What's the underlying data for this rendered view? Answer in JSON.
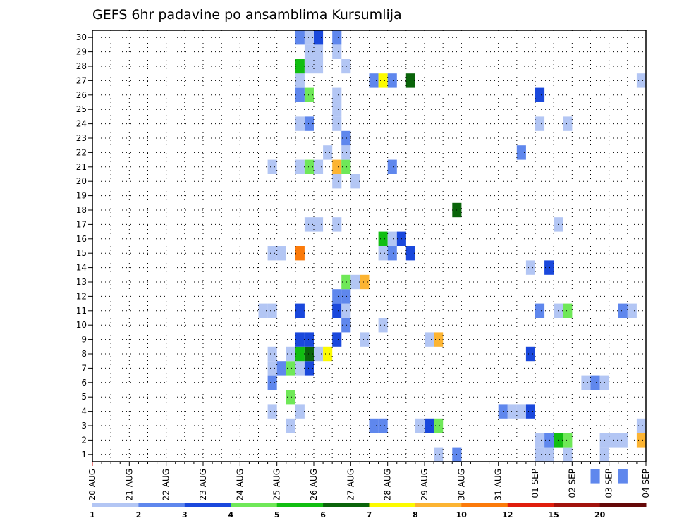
{
  "chart_data": {
    "type": "heatmap",
    "title": "GEFS 6hr padavine po ansamblima Kursumlija",
    "xlabel": "",
    "ylabel": "",
    "y_ticks": [
      1,
      2,
      3,
      4,
      5,
      6,
      7,
      8,
      9,
      10,
      11,
      12,
      13,
      14,
      15,
      16,
      17,
      18,
      19,
      20,
      21,
      22,
      23,
      24,
      25,
      26,
      27,
      28,
      29,
      30
    ],
    "ylim": [
      0,
      30
    ],
    "x_ticks": [
      "20 AUG",
      "21 AUG",
      "22 AUG",
      "23 AUG",
      "24 AUG",
      "25 AUG",
      "26 AUG",
      "27 AUG",
      "28 AUG",
      "29 AUG",
      "30 AUG",
      "31 AUG",
      "01 SEP",
      "02 SEP",
      "03 SEP",
      "04 SEP"
    ],
    "x_unit": "6h steps from 20 AUG 00Z (4 per day)",
    "xlim": [
      0,
      60
    ],
    "grid": true,
    "colorbar": {
      "labels": [
        "1",
        "2",
        "3",
        "4",
        "5",
        "6",
        "7",
        "8",
        "10",
        "12",
        "15",
        "20"
      ],
      "colors": [
        "#b3c6f4",
        "#5f87ed",
        "#1a48dc",
        "#6fe858",
        "#11be11",
        "#0a640a",
        "#fcfb00",
        "#fcb432",
        "#fb7a0a",
        "#e01d0d",
        "#a2120d",
        "#650808"
      ]
    },
    "cells": [
      [
        37.5,
        1,
        1
      ],
      [
        39.5,
        1,
        2
      ],
      [
        51.5,
        1,
        1
      ],
      [
        48.5,
        1,
        1
      ],
      [
        49.5,
        1,
        1
      ],
      [
        55.5,
        1,
        1
      ],
      [
        48.5,
        2,
        1
      ],
      [
        49.5,
        2,
        2
      ],
      [
        50.5,
        2,
        5
      ],
      [
        51.5,
        2,
        4
      ],
      [
        55.5,
        2,
        1
      ],
      [
        56.5,
        2,
        1
      ],
      [
        57.5,
        2,
        1
      ],
      [
        59.5,
        2,
        8
      ],
      [
        21.5,
        3,
        1
      ],
      [
        30.5,
        3,
        2
      ],
      [
        31.5,
        3,
        2
      ],
      [
        35.5,
        3,
        1
      ],
      [
        36.5,
        3,
        3
      ],
      [
        37.5,
        3,
        4
      ],
      [
        59.5,
        3,
        1
      ],
      [
        19.5,
        4,
        1
      ],
      [
        22.5,
        4,
        1
      ],
      [
        44.5,
        4,
        2
      ],
      [
        45.5,
        4,
        1
      ],
      [
        46.5,
        4,
        1
      ],
      [
        47.5,
        4,
        3
      ],
      [
        21.5,
        5,
        4
      ],
      [
        19.5,
        6,
        2
      ],
      [
        53.5,
        6,
        1
      ],
      [
        54.5,
        6,
        2
      ],
      [
        55.5,
        6,
        1
      ],
      [
        19.5,
        7,
        1
      ],
      [
        20.5,
        7,
        2
      ],
      [
        21.5,
        7,
        4
      ],
      [
        22.5,
        7,
        1
      ],
      [
        23.5,
        7,
        3
      ],
      [
        19.5,
        8,
        1
      ],
      [
        21.5,
        8,
        1
      ],
      [
        22.5,
        8,
        5
      ],
      [
        23.5,
        8,
        6
      ],
      [
        24.5,
        8,
        1
      ],
      [
        25.5,
        8,
        7
      ],
      [
        47.5,
        8,
        3
      ],
      [
        22.5,
        9,
        3
      ],
      [
        23.5,
        9,
        3
      ],
      [
        26.5,
        9,
        3
      ],
      [
        29.5,
        9,
        1
      ],
      [
        36.5,
        9,
        1
      ],
      [
        37.5,
        9,
        8
      ],
      [
        27.5,
        10,
        2
      ],
      [
        31.5,
        10,
        1
      ],
      [
        18.5,
        11,
        1
      ],
      [
        19.5,
        11,
        1
      ],
      [
        22.5,
        11,
        3
      ],
      [
        26.5,
        11,
        3
      ],
      [
        27.5,
        11,
        1
      ],
      [
        48.5,
        11,
        2
      ],
      [
        50.5,
        11,
        1
      ],
      [
        51.5,
        11,
        4
      ],
      [
        57.5,
        11,
        2
      ],
      [
        58.5,
        11,
        1
      ],
      [
        26.5,
        12,
        2
      ],
      [
        27.5,
        12,
        2
      ],
      [
        27.5,
        13,
        4
      ],
      [
        28.5,
        13,
        1
      ],
      [
        29.5,
        13,
        8
      ],
      [
        47.5,
        14,
        1
      ],
      [
        49.5,
        14,
        3
      ],
      [
        19.5,
        15,
        1
      ],
      [
        20.5,
        15,
        1
      ],
      [
        22.5,
        15,
        9
      ],
      [
        31.5,
        15,
        1
      ],
      [
        32.5,
        15,
        2
      ],
      [
        34.5,
        15,
        3
      ],
      [
        31.5,
        16,
        5
      ],
      [
        32.5,
        16,
        1
      ],
      [
        33.5,
        16,
        3
      ],
      [
        23.5,
        17,
        1
      ],
      [
        24.5,
        17,
        1
      ],
      [
        26.5,
        17,
        1
      ],
      [
        50.5,
        17,
        1
      ],
      [
        39.5,
        18,
        6
      ],
      [
        26.5,
        20,
        1
      ],
      [
        28.5,
        20,
        1
      ],
      [
        19.5,
        21,
        1
      ],
      [
        22.5,
        21,
        1
      ],
      [
        23.5,
        21,
        4
      ],
      [
        24.5,
        21,
        1
      ],
      [
        26.5,
        21,
        8
      ],
      [
        27.5,
        21,
        4
      ],
      [
        32.5,
        21,
        2
      ],
      [
        25.5,
        22,
        1
      ],
      [
        27.5,
        22,
        1
      ],
      [
        46.5,
        22,
        2
      ],
      [
        27.5,
        23,
        2
      ],
      [
        22.5,
        24,
        1
      ],
      [
        23.5,
        24,
        2
      ],
      [
        26.5,
        24,
        1
      ],
      [
        48.5,
        24,
        1
      ],
      [
        51.5,
        24,
        1
      ],
      [
        26.5,
        25,
        1
      ],
      [
        22.5,
        26,
        2
      ],
      [
        23.5,
        26,
        4
      ],
      [
        26.5,
        26,
        1
      ],
      [
        48.5,
        26,
        3
      ],
      [
        22.5,
        27,
        1
      ],
      [
        30.5,
        27,
        2
      ],
      [
        31.5,
        27,
        7
      ],
      [
        32.5,
        27,
        2
      ],
      [
        34.5,
        27,
        6
      ],
      [
        59.5,
        27,
        1
      ],
      [
        22.5,
        28,
        5
      ],
      [
        23.5,
        28,
        1
      ],
      [
        24.5,
        28,
        1
      ],
      [
        27.5,
        28,
        1
      ],
      [
        23.5,
        29,
        1
      ],
      [
        24.5,
        29,
        1
      ],
      [
        26.5,
        29,
        1
      ],
      [
        22.5,
        30,
        2
      ],
      [
        23.5,
        30,
        1
      ],
      [
        24.5,
        30,
        3
      ],
      [
        26.5,
        30,
        2
      ],
      [
        54.5,
        -0.5,
        2
      ],
      [
        57.5,
        -0.5,
        2
      ]
    ]
  }
}
